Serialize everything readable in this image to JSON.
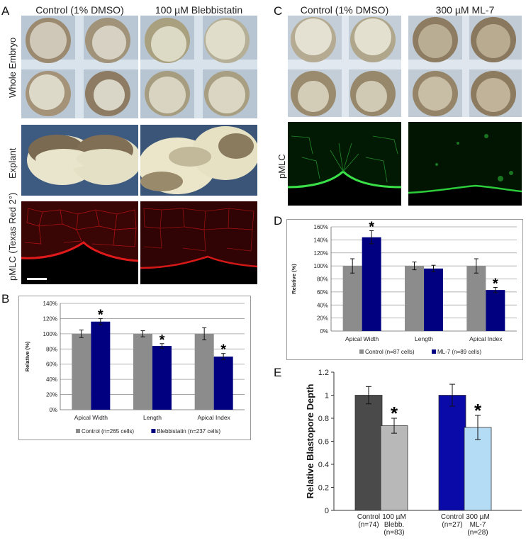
{
  "figure": {
    "panel_letters": [
      "A",
      "B",
      "C",
      "D",
      "E"
    ],
    "panel_a": {
      "col_titles": [
        "Control (1% DMSO)",
        "100 µM Blebbistatin"
      ],
      "row_labels": [
        "Whole Embryo",
        "Explant",
        "pMLC (Texas Red 2°)"
      ]
    },
    "panel_c": {
      "col_titles": [
        "Control (1% DMSO)",
        "300 µM ML-7"
      ],
      "row_label": "pMLC"
    }
  },
  "chart_data": [
    {
      "panel": "B",
      "type": "bar",
      "categories": [
        "Apical Width",
        "Length",
        "Apical Index"
      ],
      "series": [
        {
          "name": "Control (n=265 cells)",
          "values": [
            100,
            100,
            100
          ],
          "errors": [
            5,
            4,
            8
          ],
          "color": "#8c8c8c"
        },
        {
          "name": "Blebbistatin (n=237 cells)",
          "values": [
            116,
            84,
            70
          ],
          "errors": [
            4,
            3,
            4
          ],
          "color": "#000080"
        }
      ],
      "significant": [
        [
          false,
          true
        ],
        [
          false,
          true
        ],
        [
          false,
          true
        ]
      ],
      "ylabel": "Relative (%)",
      "ylim": [
        0,
        140
      ],
      "yticks": [
        "0%",
        "20%",
        "40%",
        "60%",
        "80%",
        "100%",
        "120%",
        "140%"
      ],
      "grid": true,
      "legend": "bottom"
    },
    {
      "panel": "D",
      "type": "bar",
      "categories": [
        "Apical Width",
        "Length",
        "Apical Index"
      ],
      "series": [
        {
          "name": "Control (n=87 cells)",
          "values": [
            100,
            100,
            100
          ],
          "errors": [
            11,
            6,
            11
          ],
          "color": "#8c8c8c"
        },
        {
          "name": "ML-7 (n=89 cells)",
          "values": [
            144,
            96,
            63
          ],
          "errors": [
            10,
            5,
            4
          ],
          "color": "#000080"
        }
      ],
      "significant": [
        [
          false,
          true
        ],
        [
          false,
          false
        ],
        [
          false,
          true
        ]
      ],
      "ylabel": "Relative (%)",
      "ylim": [
        0,
        160
      ],
      "yticks": [
        "0%",
        "20%",
        "40%",
        "60%",
        "80%",
        "100%",
        "120%",
        "140%",
        "160%"
      ],
      "grid": true,
      "legend": "bottom"
    },
    {
      "panel": "E",
      "type": "bar",
      "categories": [
        "Control\n(n=74)",
        "100 µM\nBlebb.\n(n=83)",
        "Control\n(n=27)",
        "300 µM\nML-7\n(n=28)"
      ],
      "values": [
        1.0,
        0.735,
        1.0,
        0.72
      ],
      "errors": [
        0.075,
        0.065,
        0.095,
        0.105
      ],
      "colors": [
        "#4a4a4a",
        "#b8b8b8",
        "#0a0aa8",
        "#b5dcf5"
      ],
      "significant": [
        false,
        true,
        false,
        true
      ],
      "ylabel": "Relative Blastopore Depth",
      "ylim": [
        0,
        1.2
      ],
      "yticks": [
        "0",
        "0.2",
        "0.4",
        "0.6",
        "0.8",
        "1",
        "1.2"
      ],
      "grid": false
    }
  ]
}
